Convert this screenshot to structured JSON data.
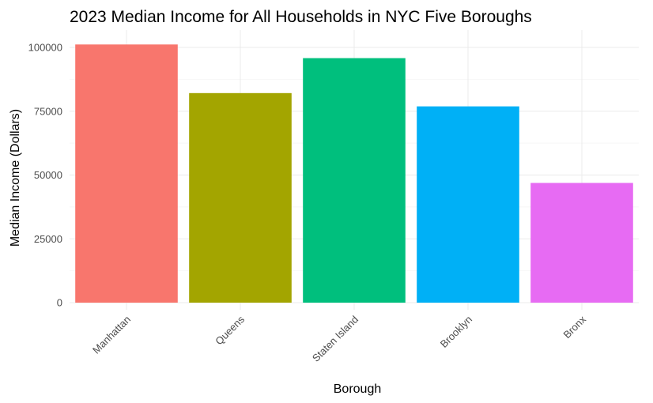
{
  "chart_data": {
    "type": "bar",
    "title": "2023 Median Income for All Households in NYC Five Boroughs",
    "xlabel": "Borough",
    "ylabel": "Median Income (Dollars)",
    "categories": [
      "Manhattan",
      "Queens",
      "Staten Island",
      "Brooklyn",
      "Bronx"
    ],
    "values": [
      101150,
      82100,
      95800,
      76900,
      46900
    ],
    "colors": [
      "#F8766D",
      "#A3A500",
      "#00BF7D",
      "#00B0F6",
      "#E76BF3"
    ],
    "ylim": [
      0,
      106000
    ],
    "yticks": [
      0,
      25000,
      50000,
      75000,
      100000
    ],
    "ytick_labels": [
      "0",
      "25000",
      "50000",
      "75000",
      "100000"
    ],
    "grid": true,
    "legend": "none"
  }
}
